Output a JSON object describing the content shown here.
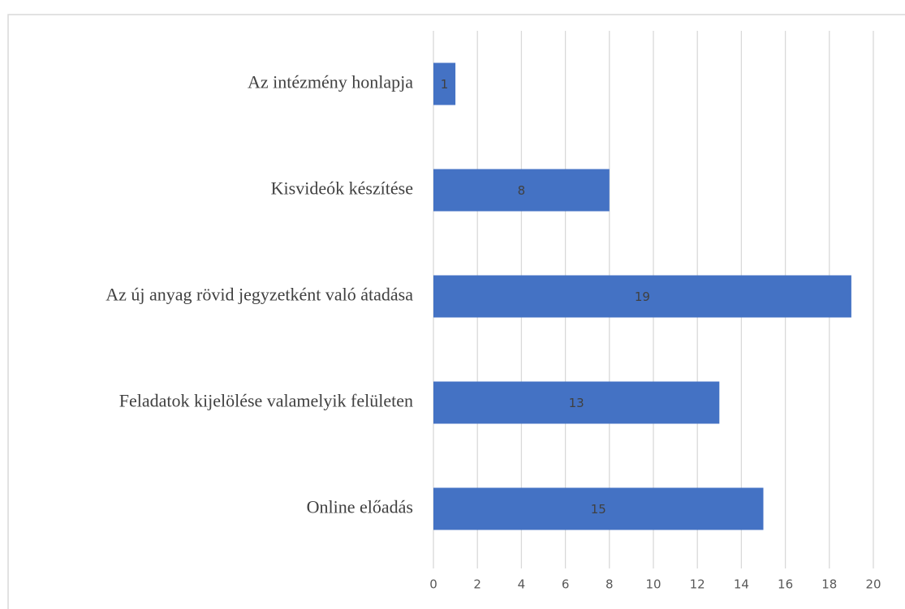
{
  "chart_data": {
    "type": "barh",
    "categories": [
      "Az intézmény honlapja",
      "Kisvideók készítése",
      "Az új anyag rövid jegyzetként való átadása",
      "Feladatok kijelölése valamelyik felületen",
      "Online előadás"
    ],
    "values": [
      1,
      8,
      19,
      13,
      15
    ],
    "color": "#4472c4",
    "xlim": [
      0,
      20
    ],
    "xticks": [
      0,
      2,
      4,
      6,
      8,
      10,
      12,
      14,
      16,
      18,
      20
    ],
    "grid": true
  }
}
